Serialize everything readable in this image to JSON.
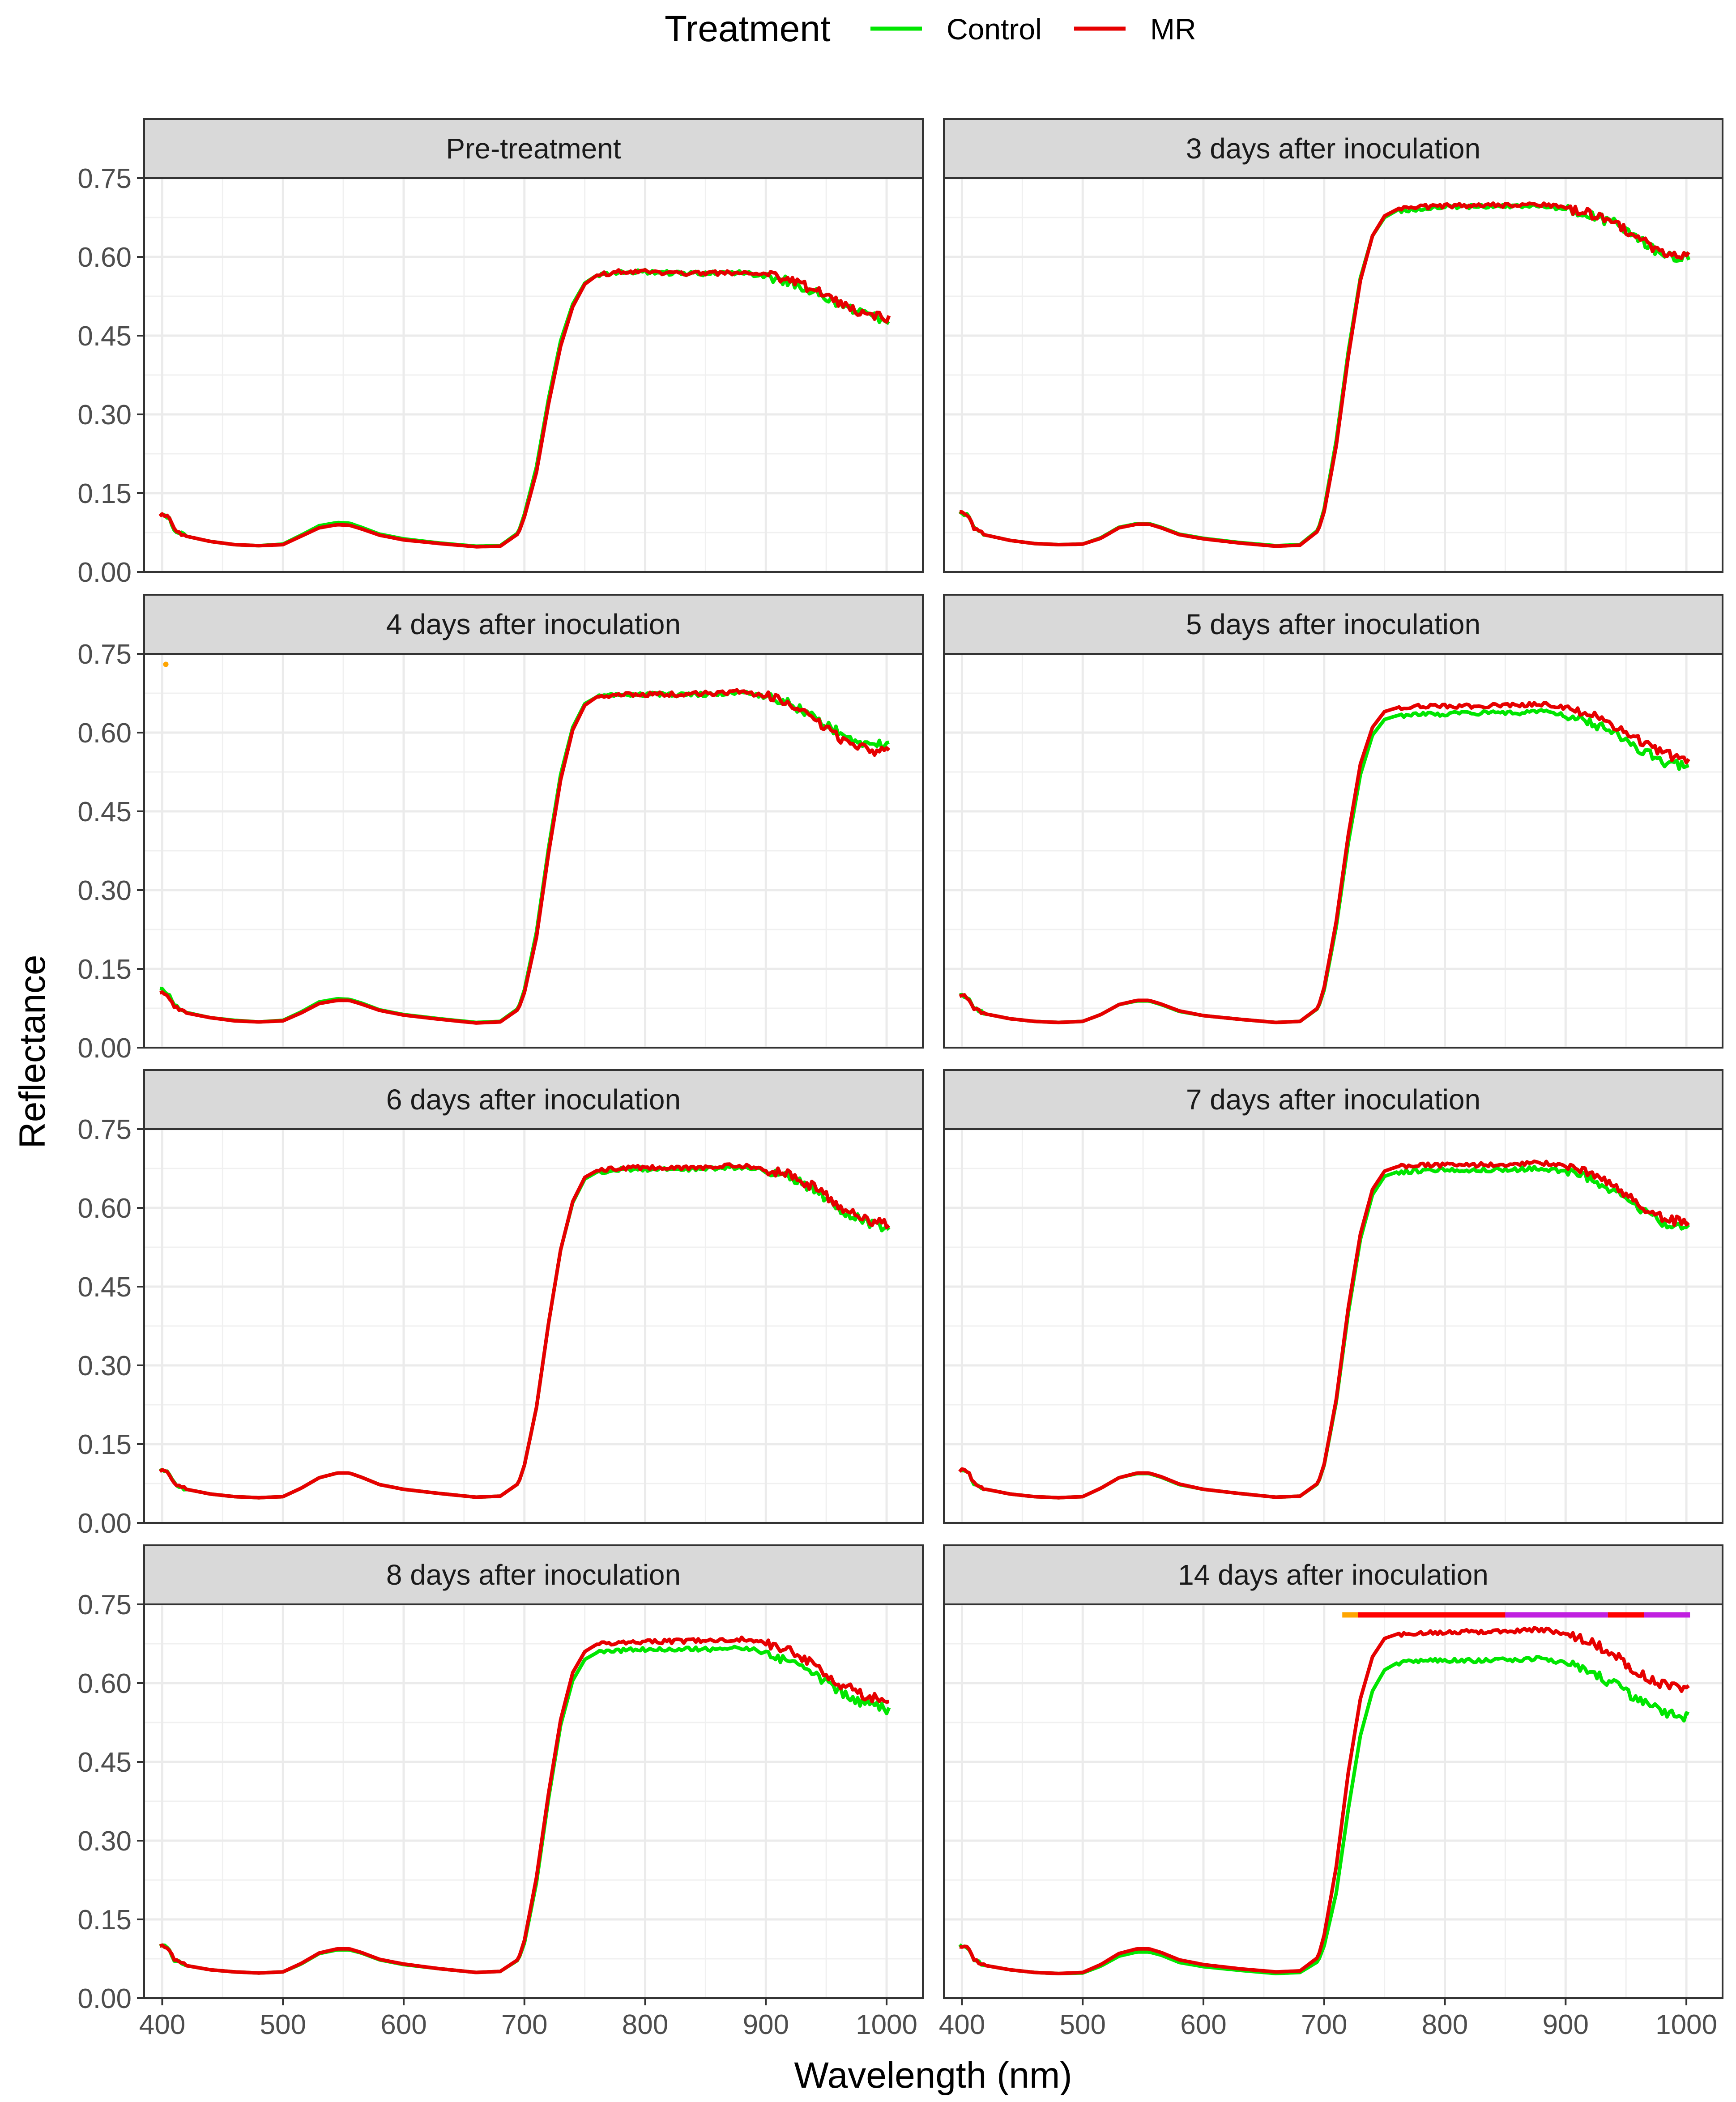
{
  "legend": {
    "title": "Treatment",
    "items": [
      {
        "label": "Control",
        "color": "#00e600"
      },
      {
        "label": "MR",
        "color": "#e60000"
      }
    ]
  },
  "chart_data": {
    "type": "line",
    "facet_layout": "2 columns x 4 rows",
    "xlabel": "Wavelength (nm)",
    "ylabel": "Reflectance",
    "xlim": [
      385,
      1030
    ],
    "ylim": [
      0,
      0.75
    ],
    "x_ticks": [
      400,
      500,
      600,
      700,
      800,
      900,
      1000
    ],
    "x_tick_labels": [
      "400",
      "500",
      "600",
      "700",
      "800",
      "900",
      "1000"
    ],
    "y_ticks": [
      0,
      0.15,
      0.3,
      0.45,
      0.6,
      0.75
    ],
    "y_tick_labels": [
      "0.00",
      "0.15",
      "0.30",
      "0.45",
      "0.60",
      "0.75"
    ],
    "grid": true,
    "wavelengths": [
      400,
      405,
      410,
      420,
      440,
      460,
      480,
      500,
      515,
      530,
      545,
      555,
      565,
      580,
      600,
      630,
      660,
      680,
      695,
      700,
      710,
      720,
      730,
      740,
      750,
      760,
      780,
      800,
      830,
      860,
      880,
      900,
      920,
      940,
      960,
      980,
      1000
    ],
    "panels": [
      {
        "title": "Pre-treatment",
        "series": [
          {
            "name": "Control",
            "color": "#00e600",
            "values": [
              0.108,
              0.105,
              0.08,
              0.068,
              0.058,
              0.052,
              0.05,
              0.053,
              0.07,
              0.088,
              0.094,
              0.093,
              0.085,
              0.072,
              0.063,
              0.055,
              0.049,
              0.05,
              0.075,
              0.11,
              0.2,
              0.33,
              0.44,
              0.51,
              0.55,
              0.565,
              0.572,
              0.572,
              0.568,
              0.569,
              0.57,
              0.563,
              0.553,
              0.535,
              0.51,
              0.492,
              0.48
            ]
          },
          {
            "name": "MR",
            "color": "#e60000",
            "values": [
              0.108,
              0.105,
              0.08,
              0.068,
              0.058,
              0.052,
              0.05,
              0.052,
              0.068,
              0.084,
              0.09,
              0.089,
              0.082,
              0.07,
              0.061,
              0.054,
              0.048,
              0.049,
              0.073,
              0.105,
              0.19,
              0.32,
              0.43,
              0.505,
              0.548,
              0.565,
              0.572,
              0.572,
              0.568,
              0.569,
              0.571,
              0.565,
              0.556,
              0.537,
              0.512,
              0.494,
              0.482
            ]
          }
        ],
        "markers": []
      },
      {
        "title": "3 days after inoculation",
        "series": [
          {
            "name": "Control",
            "color": "#00e600",
            "values": [
              0.112,
              0.108,
              0.082,
              0.07,
              0.06,
              0.054,
              0.052,
              0.053,
              0.065,
              0.085,
              0.092,
              0.092,
              0.085,
              0.072,
              0.064,
              0.056,
              0.05,
              0.052,
              0.08,
              0.12,
              0.25,
              0.42,
              0.56,
              0.64,
              0.675,
              0.688,
              0.692,
              0.695,
              0.696,
              0.697,
              0.698,
              0.69,
              0.68,
              0.665,
              0.635,
              0.605,
              0.598
            ]
          },
          {
            "name": "MR",
            "color": "#e60000",
            "values": [
              0.112,
              0.108,
              0.082,
              0.07,
              0.06,
              0.054,
              0.052,
              0.053,
              0.064,
              0.084,
              0.091,
              0.091,
              0.084,
              0.071,
              0.063,
              0.055,
              0.049,
              0.051,
              0.078,
              0.115,
              0.24,
              0.41,
              0.555,
              0.64,
              0.678,
              0.69,
              0.695,
              0.697,
              0.698,
              0.699,
              0.7,
              0.692,
              0.682,
              0.667,
              0.637,
              0.607,
              0.6
            ]
          }
        ],
        "markers": []
      },
      {
        "title": "4 days after inoculation",
        "series": [
          {
            "name": "Control",
            "color": "#00e600",
            "values": [
              0.112,
              0.103,
              0.08,
              0.067,
              0.057,
              0.052,
              0.049,
              0.052,
              0.068,
              0.087,
              0.093,
              0.092,
              0.085,
              0.072,
              0.063,
              0.055,
              0.048,
              0.05,
              0.075,
              0.11,
              0.22,
              0.38,
              0.52,
              0.61,
              0.655,
              0.668,
              0.672,
              0.673,
              0.672,
              0.674,
              0.677,
              0.668,
              0.655,
              0.632,
              0.6,
              0.58,
              0.575
            ]
          },
          {
            "name": "MR",
            "color": "#e60000",
            "values": [
              0.105,
              0.1,
              0.078,
              0.066,
              0.057,
              0.051,
              0.049,
              0.051,
              0.066,
              0.084,
              0.09,
              0.09,
              0.083,
              0.071,
              0.062,
              0.054,
              0.047,
              0.049,
              0.073,
              0.105,
              0.21,
              0.37,
              0.51,
              0.605,
              0.652,
              0.668,
              0.672,
              0.673,
              0.673,
              0.675,
              0.678,
              0.67,
              0.653,
              0.625,
              0.59,
              0.57,
              0.562
            ]
          }
        ],
        "markers": [
          {
            "wavelength": 403,
            "value": 0.73,
            "color": "#ffa500"
          }
        ]
      },
      {
        "title": "5 days after inoculation",
        "series": [
          {
            "name": "Control",
            "color": "#00e600",
            "values": [
              0.1,
              0.096,
              0.075,
              0.064,
              0.055,
              0.05,
              0.048,
              0.05,
              0.063,
              0.082,
              0.089,
              0.089,
              0.082,
              0.069,
              0.061,
              0.054,
              0.048,
              0.05,
              0.075,
              0.11,
              0.23,
              0.39,
              0.52,
              0.595,
              0.625,
              0.632,
              0.635,
              0.635,
              0.637,
              0.638,
              0.64,
              0.632,
              0.62,
              0.6,
              0.57,
              0.545,
              0.535
            ]
          },
          {
            "name": "MR",
            "color": "#e60000",
            "values": [
              0.1,
              0.096,
              0.075,
              0.064,
              0.055,
              0.05,
              0.048,
              0.05,
              0.063,
              0.082,
              0.09,
              0.09,
              0.083,
              0.07,
              0.061,
              0.054,
              0.048,
              0.05,
              0.076,
              0.115,
              0.24,
              0.405,
              0.54,
              0.61,
              0.64,
              0.647,
              0.65,
              0.65,
              0.651,
              0.652,
              0.654,
              0.647,
              0.636,
              0.615,
              0.585,
              0.56,
              0.55
            ]
          }
        ],
        "markers": []
      },
      {
        "title": "6 days after inoculation",
        "series": [
          {
            "name": "Control",
            "color": "#00e600",
            "values": [
              0.1,
              0.097,
              0.075,
              0.064,
              0.055,
              0.05,
              0.048,
              0.05,
              0.066,
              0.086,
              0.095,
              0.095,
              0.087,
              0.073,
              0.064,
              0.056,
              0.049,
              0.051,
              0.075,
              0.11,
              0.22,
              0.38,
              0.52,
              0.61,
              0.655,
              0.668,
              0.673,
              0.674,
              0.674,
              0.675,
              0.678,
              0.67,
              0.658,
              0.635,
              0.6,
              0.575,
              0.56
            ]
          },
          {
            "name": "MR",
            "color": "#e60000",
            "values": [
              0.1,
              0.097,
              0.075,
              0.064,
              0.055,
              0.05,
              0.048,
              0.05,
              0.066,
              0.086,
              0.095,
              0.095,
              0.087,
              0.073,
              0.064,
              0.056,
              0.049,
              0.051,
              0.075,
              0.11,
              0.22,
              0.38,
              0.52,
              0.612,
              0.658,
              0.671,
              0.676,
              0.677,
              0.677,
              0.678,
              0.681,
              0.673,
              0.662,
              0.64,
              0.605,
              0.58,
              0.568
            ]
          }
        ],
        "markers": []
      },
      {
        "title": "7 days after inoculation",
        "series": [
          {
            "name": "Control",
            "color": "#00e600",
            "values": [
              0.1,
              0.097,
              0.075,
              0.064,
              0.055,
              0.05,
              0.048,
              0.05,
              0.066,
              0.086,
              0.094,
              0.094,
              0.087,
              0.073,
              0.064,
              0.056,
              0.049,
              0.051,
              0.075,
              0.11,
              0.23,
              0.4,
              0.54,
              0.625,
              0.66,
              0.668,
              0.671,
              0.672,
              0.672,
              0.673,
              0.676,
              0.668,
              0.655,
              0.63,
              0.597,
              0.572,
              0.56
            ]
          },
          {
            "name": "MR",
            "color": "#e60000",
            "values": [
              0.1,
              0.097,
              0.075,
              0.064,
              0.055,
              0.05,
              0.048,
              0.05,
              0.066,
              0.086,
              0.095,
              0.095,
              0.088,
              0.074,
              0.064,
              0.056,
              0.049,
              0.051,
              0.076,
              0.112,
              0.235,
              0.41,
              0.55,
              0.635,
              0.67,
              0.678,
              0.681,
              0.682,
              0.682,
              0.683,
              0.686,
              0.678,
              0.665,
              0.64,
              0.607,
              0.582,
              0.57
            ]
          }
        ],
        "markers": []
      },
      {
        "title": "8 days after inoculation",
        "series": [
          {
            "name": "Control",
            "color": "#00e600",
            "values": [
              0.1,
              0.097,
              0.072,
              0.062,
              0.054,
              0.05,
              0.048,
              0.05,
              0.065,
              0.085,
              0.092,
              0.092,
              0.086,
              0.073,
              0.064,
              0.056,
              0.049,
              0.051,
              0.073,
              0.105,
              0.22,
              0.38,
              0.52,
              0.605,
              0.645,
              0.658,
              0.662,
              0.664,
              0.664,
              0.665,
              0.668,
              0.658,
              0.642,
              0.618,
              0.585,
              0.562,
              0.55
            ]
          },
          {
            "name": "MR",
            "color": "#e60000",
            "values": [
              0.1,
              0.097,
              0.072,
              0.062,
              0.054,
              0.05,
              0.048,
              0.05,
              0.066,
              0.086,
              0.094,
              0.094,
              0.087,
              0.074,
              0.065,
              0.056,
              0.049,
              0.051,
              0.074,
              0.11,
              0.23,
              0.39,
              0.53,
              0.62,
              0.66,
              0.674,
              0.678,
              0.679,
              0.68,
              0.681,
              0.684,
              0.675,
              0.66,
              0.635,
              0.6,
              0.578,
              0.565
            ]
          }
        ],
        "markers": []
      },
      {
        "title": "14 days after inoculation",
        "series": [
          {
            "name": "Control",
            "color": "#00e600",
            "values": [
              0.1,
              0.096,
              0.073,
              0.062,
              0.054,
              0.049,
              0.047,
              0.048,
              0.061,
              0.08,
              0.088,
              0.088,
              0.082,
              0.068,
              0.06,
              0.053,
              0.047,
              0.049,
              0.07,
              0.1,
              0.2,
              0.36,
              0.5,
              0.585,
              0.625,
              0.638,
              0.642,
              0.643,
              0.643,
              0.644,
              0.647,
              0.638,
              0.622,
              0.598,
              0.568,
              0.545,
              0.535
            ]
          },
          {
            "name": "MR",
            "color": "#e60000",
            "values": [
              0.1,
              0.096,
              0.073,
              0.062,
              0.054,
              0.049,
              0.047,
              0.049,
              0.064,
              0.085,
              0.094,
              0.094,
              0.087,
              0.073,
              0.064,
              0.056,
              0.05,
              0.052,
              0.078,
              0.12,
              0.25,
              0.43,
              0.57,
              0.65,
              0.685,
              0.693,
              0.696,
              0.697,
              0.698,
              0.7,
              0.702,
              0.695,
              0.68,
              0.655,
              0.62,
              0.597,
              0.59
            ]
          }
        ],
        "markers_band": {
          "value": 0.73,
          "segments": [
            {
              "from": 715,
              "to": 728,
              "color": "#ffa500"
            },
            {
              "from": 728,
              "to": 850,
              "color": "#ff0000"
            },
            {
              "from": 850,
              "to": 935,
              "color": "#c020e0"
            },
            {
              "from": 935,
              "to": 965,
              "color": "#ff0000"
            },
            {
              "from": 965,
              "to": 1003,
              "color": "#c020e0"
            }
          ]
        }
      }
    ]
  }
}
